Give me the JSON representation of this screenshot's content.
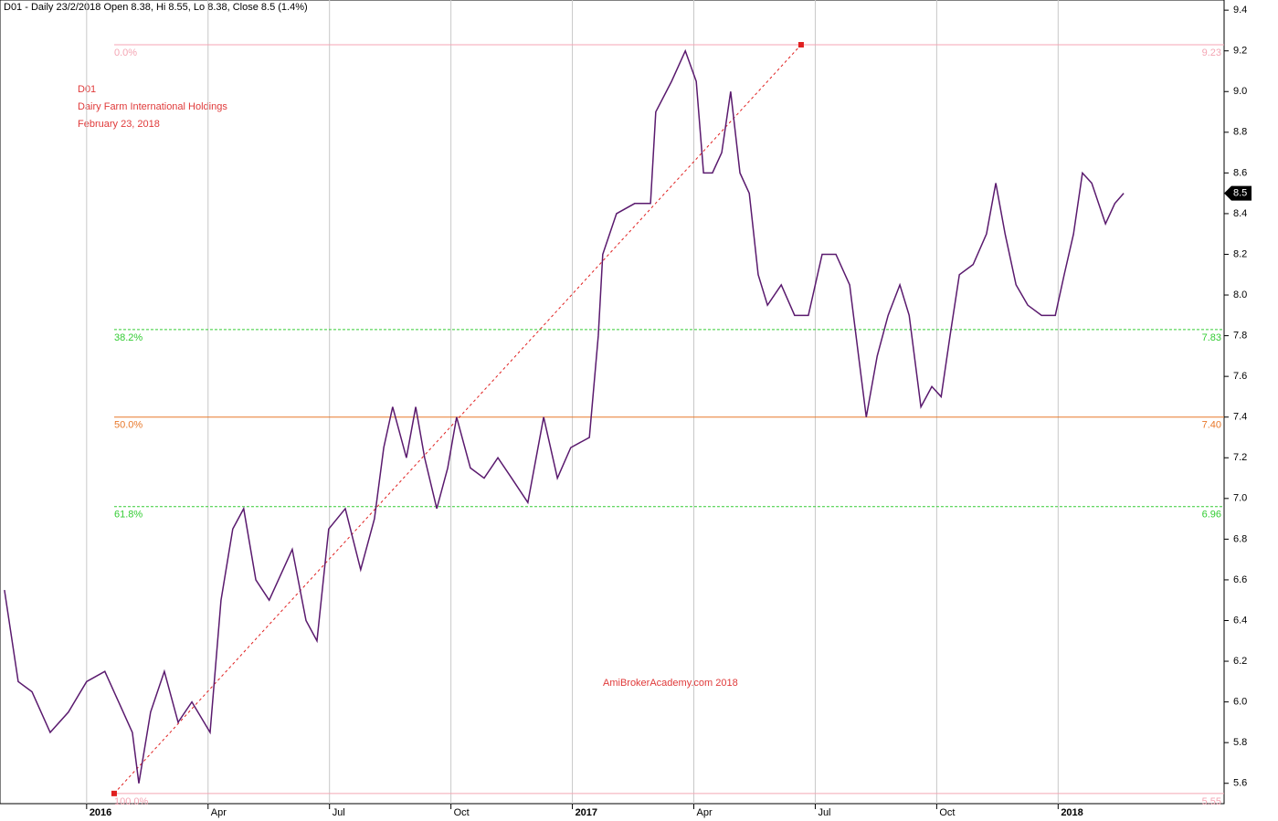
{
  "chart_data": {
    "type": "line",
    "header": "D01 - Daily 23/2/2018 Open 8.38, Hi 8.55, Lo 8.38, Close 8.5 (1.4%)",
    "annotations": [
      "D01",
      "Dairy Farm International Holdings",
      "February 23, 2018"
    ],
    "watermark": "AmiBrokerAcademy.com  2018",
    "last_price": 8.5,
    "xlim": [
      -2.14,
      28.1
    ],
    "xticks": [
      {
        "value": 0,
        "label": "2016"
      },
      {
        "value": 3,
        "label": "Apr"
      },
      {
        "value": 6,
        "label": "Jul"
      },
      {
        "value": 9,
        "label": "Oct"
      },
      {
        "value": 12,
        "label": "2017"
      },
      {
        "value": 15,
        "label": "Apr"
      },
      {
        "value": 18,
        "label": "Jul"
      },
      {
        "value": 21,
        "label": "Oct"
      },
      {
        "value": 24,
        "label": "2018"
      }
    ],
    "ylim": [
      5.5,
      9.45
    ],
    "yticks": [
      5.6,
      5.8,
      {
        "value": 6,
        "label": "6.0"
      },
      6.2,
      6.4,
      6.6,
      6.8,
      {
        "value": 7,
        "label": "7.0"
      },
      7.2,
      7.4,
      7.6,
      7.8,
      {
        "value": 8,
        "label": "8.0"
      },
      8.2,
      8.4,
      8.6,
      8.8,
      {
        "value": 9,
        "label": "9.0"
      },
      9.2,
      9.4
    ],
    "grid": true,
    "series": [
      {
        "name": "D01",
        "color": "#5a1a6e",
        "x": [
          -2.03,
          -1.69,
          -1.35,
          -0.9,
          -0.45,
          0,
          0.45,
          0.79,
          1.13,
          1.29,
          1.58,
          1.92,
          2.26,
          2.6,
          3.05,
          3.32,
          3.61,
          3.88,
          4.18,
          4.51,
          5.08,
          5.42,
          5.69,
          5.98,
          6.39,
          6.77,
          7.11,
          7.34,
          7.56,
          7.9,
          8.13,
          8.35,
          8.65,
          8.92,
          9.14,
          9.48,
          9.82,
          10.16,
          10.5,
          10.9,
          11.29,
          11.63,
          11.96,
          12.42,
          12.64,
          12.75,
          13.09,
          13.54,
          13.93,
          14.06,
          14.45,
          14.79,
          15.06,
          15.24,
          15.46,
          15.69,
          15.91,
          16.14,
          16.37,
          16.59,
          16.82,
          17.16,
          17.49,
          17.83,
          18.17,
          18.51,
          18.85,
          19.07,
          19.26,
          19.53,
          19.8,
          20.09,
          20.32,
          20.61,
          20.88,
          21.11,
          21.33,
          21.56,
          21.9,
          22.23,
          22.46,
          22.69,
          22.96,
          23.25,
          23.59,
          23.93,
          24.15,
          24.38,
          24.6,
          24.83,
          25.17,
          25.4,
          25.62
        ],
        "values": [
          6.55,
          6.1,
          6.05,
          5.85,
          5.95,
          6.1,
          6.15,
          6.0,
          5.85,
          5.6,
          5.95,
          6.15,
          5.9,
          6.0,
          5.85,
          6.5,
          6.85,
          6.95,
          6.6,
          6.5,
          6.75,
          6.4,
          6.3,
          6.85,
          6.95,
          6.65,
          6.9,
          7.25,
          7.45,
          7.2,
          7.45,
          7.2,
          6.95,
          7.15,
          7.4,
          7.15,
          7.1,
          7.2,
          7.1,
          6.98,
          7.4,
          7.1,
          7.25,
          7.3,
          7.8,
          8.2,
          8.4,
          8.45,
          8.45,
          8.9,
          9.05,
          9.2,
          9.05,
          8.6,
          8.6,
          8.7,
          9.0,
          8.6,
          8.5,
          8.1,
          7.95,
          8.05,
          7.9,
          7.9,
          8.2,
          8.2,
          8.05,
          7.7,
          7.4,
          7.7,
          7.9,
          8.05,
          7.9,
          7.45,
          7.55,
          7.5,
          7.8,
          8.1,
          8.15,
          8.3,
          8.55,
          8.3,
          8.05,
          7.95,
          7.9,
          7.9,
          8.1,
          8.3,
          8.6,
          8.55,
          8.35,
          8.45,
          8.5
        ]
      }
    ],
    "trendline": {
      "x": [
        0.68,
        17.65
      ],
      "values": [
        5.55,
        9.23
      ],
      "color": "#e02020"
    },
    "fib_levels": {
      "names": [
        "0.0%",
        "38.2%",
        "50.0%",
        "61.8%",
        "100.0%"
      ],
      "values": [
        9.23,
        7.83,
        7.4,
        6.96,
        5.55
      ],
      "value_labels": [
        "9.23",
        "7.83",
        "7.40",
        "6.96",
        "5.55"
      ],
      "colors": [
        "#f4a6b4",
        "#33cc33",
        "#e8782a",
        "#33cc33",
        "#f4a6b4"
      ]
    }
  }
}
